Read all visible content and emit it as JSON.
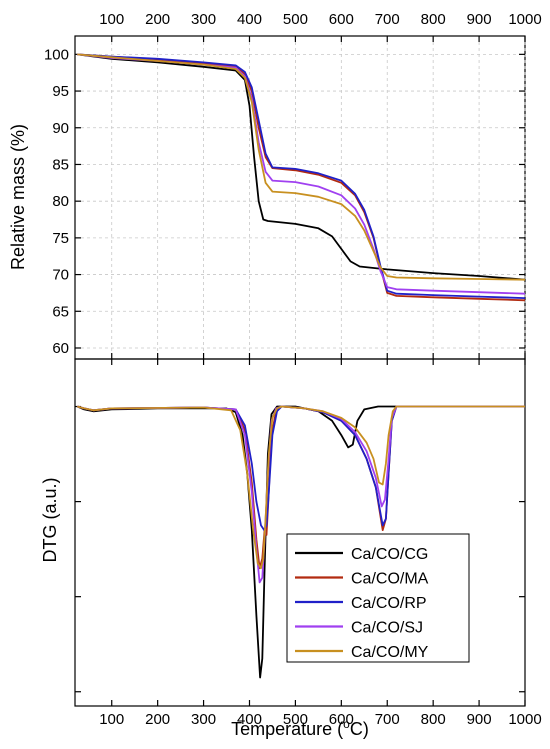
{
  "chart_data": [
    {
      "panel": "top",
      "type": "line",
      "ylabel": "Relative mass (%)",
      "xlabel": "",
      "xlim": [
        20,
        1000
      ],
      "ylim": [
        58.5,
        102.5
      ],
      "x_ticks": [
        "100",
        "200",
        "300",
        "400",
        "500",
        "600",
        "700",
        "800",
        "900",
        "1000"
      ],
      "y_ticks": [
        "60",
        "65",
        "70",
        "75",
        "80",
        "85",
        "90",
        "95",
        "100"
      ],
      "grid": true,
      "series": [
        {
          "name": "Ca/CO/CG",
          "color": "#000000",
          "points": [
            [
              25,
              100
            ],
            [
              100,
              99.4
            ],
            [
              200,
              98.9
            ],
            [
              300,
              98.3
            ],
            [
              370,
              97.8
            ],
            [
              390,
              96.5
            ],
            [
              400,
              93
            ],
            [
              410,
              86
            ],
            [
              420,
              80
            ],
            [
              430,
              77.5
            ],
            [
              440,
              77.3
            ],
            [
              500,
              76.9
            ],
            [
              550,
              76.3
            ],
            [
              580,
              75.2
            ],
            [
              600,
              73.5
            ],
            [
              620,
              71.8
            ],
            [
              640,
              71.1
            ],
            [
              700,
              70.7
            ],
            [
              800,
              70.2
            ],
            [
              900,
              69.8
            ],
            [
              1000,
              69.3
            ]
          ]
        },
        {
          "name": "Ca/CO/MA",
          "color": "#b22b10",
          "points": [
            [
              25,
              100
            ],
            [
              100,
              99.7
            ],
            [
              200,
              99.3
            ],
            [
              300,
              98.8
            ],
            [
              370,
              98.3
            ],
            [
              390,
              97.3
            ],
            [
              405,
              95
            ],
            [
              420,
              90
            ],
            [
              435,
              86
            ],
            [
              450,
              84.5
            ],
            [
              500,
              84.2
            ],
            [
              550,
              83.6
            ],
            [
              600,
              82.5
            ],
            [
              630,
              80.8
            ],
            [
              650,
              78.5
            ],
            [
              670,
              75
            ],
            [
              685,
              71
            ],
            [
              700,
              67.5
            ],
            [
              720,
              67.1
            ],
            [
              800,
              66.9
            ],
            [
              900,
              66.7
            ],
            [
              1000,
              66.5
            ]
          ]
        },
        {
          "name": "Ca/CO/RP",
          "color": "#2020c8",
          "points": [
            [
              25,
              100
            ],
            [
              100,
              99.7
            ],
            [
              200,
              99.4
            ],
            [
              300,
              98.9
            ],
            [
              370,
              98.5
            ],
            [
              390,
              97.6
            ],
            [
              405,
              95.5
            ],
            [
              420,
              91
            ],
            [
              435,
              86.5
            ],
            [
              450,
              84.6
            ],
            [
              500,
              84.4
            ],
            [
              550,
              83.8
            ],
            [
              600,
              82.8
            ],
            [
              630,
              81
            ],
            [
              650,
              78.8
            ],
            [
              670,
              75.2
            ],
            [
              685,
              71.2
            ],
            [
              700,
              67.8
            ],
            [
              720,
              67.4
            ],
            [
              800,
              67.2
            ],
            [
              900,
              67
            ],
            [
              1000,
              66.8
            ]
          ]
        },
        {
          "name": "Ca/CO/SJ",
          "color": "#a040f0",
          "points": [
            [
              25,
              100
            ],
            [
              100,
              99.5
            ],
            [
              200,
              99.1
            ],
            [
              300,
              98.6
            ],
            [
              370,
              98.2
            ],
            [
              390,
              97
            ],
            [
              405,
              94
            ],
            [
              420,
              88
            ],
            [
              435,
              84
            ],
            [
              450,
              82.8
            ],
            [
              500,
              82.6
            ],
            [
              550,
              82
            ],
            [
              600,
              80.8
            ],
            [
              630,
              79
            ],
            [
              650,
              76.8
            ],
            [
              670,
              73.5
            ],
            [
              685,
              70.5
            ],
            [
              700,
              68.3
            ],
            [
              720,
              68
            ],
            [
              800,
              67.8
            ],
            [
              900,
              67.6
            ],
            [
              1000,
              67.4
            ]
          ]
        },
        {
          "name": "Ca/CO/MY",
          "color": "#c89020",
          "points": [
            [
              25,
              100
            ],
            [
              100,
              99.6
            ],
            [
              200,
              99.1
            ],
            [
              300,
              98.6
            ],
            [
              370,
              98
            ],
            [
              390,
              96.8
            ],
            [
              405,
              93.5
            ],
            [
              420,
              87
            ],
            [
              435,
              82.5
            ],
            [
              450,
              81.3
            ],
            [
              500,
              81.1
            ],
            [
              550,
              80.6
            ],
            [
              600,
              79.6
            ],
            [
              630,
              78
            ],
            [
              650,
              76
            ],
            [
              670,
              73.2
            ],
            [
              685,
              71
            ],
            [
              700,
              69.8
            ],
            [
              720,
              69.6
            ],
            [
              800,
              69.5
            ],
            [
              900,
              69.4
            ],
            [
              1000,
              69.3
            ]
          ]
        }
      ]
    },
    {
      "panel": "bottom",
      "type": "line",
      "ylabel": "DTG (a.u.)",
      "xlabel": "Temperature (oC)",
      "xlim": [
        20,
        1000
      ],
      "ylim": [
        -0.315,
        0.05
      ],
      "x_ticks": [
        "100",
        "200",
        "300",
        "400",
        "500",
        "600",
        "700",
        "800",
        "900",
        "1000"
      ],
      "grid": false,
      "legend_position": "bottom-right",
      "series": [
        {
          "name": "Ca/CO/CG",
          "color": "#000000",
          "points": [
            [
              25,
              0
            ],
            [
              40,
              -0.003
            ],
            [
              60,
              -0.005
            ],
            [
              100,
              -0.003
            ],
            [
              200,
              -0.002
            ],
            [
              300,
              -0.002
            ],
            [
              350,
              -0.002
            ],
            [
              370,
              -0.006
            ],
            [
              385,
              -0.03
            ],
            [
              395,
              -0.07
            ],
            [
              405,
              -0.13
            ],
            [
              415,
              -0.22
            ],
            [
              423,
              -0.285
            ],
            [
              428,
              -0.265
            ],
            [
              433,
              -0.17
            ],
            [
              440,
              -0.05
            ],
            [
              448,
              -0.008
            ],
            [
              460,
              0
            ],
            [
              500,
              0
            ],
            [
              550,
              -0.005
            ],
            [
              580,
              -0.015
            ],
            [
              600,
              -0.03
            ],
            [
              615,
              -0.043
            ],
            [
              625,
              -0.04
            ],
            [
              635,
              -0.015
            ],
            [
              650,
              -0.003
            ],
            [
              680,
              0
            ],
            [
              1000,
              0
            ]
          ]
        },
        {
          "name": "Ca/CO/MA",
          "color": "#b22b10",
          "points": [
            [
              25,
              0
            ],
            [
              40,
              -0.002
            ],
            [
              60,
              -0.004
            ],
            [
              100,
              -0.002
            ],
            [
              300,
              -0.001
            ],
            [
              370,
              -0.003
            ],
            [
              390,
              -0.025
            ],
            [
              405,
              -0.08
            ],
            [
              415,
              -0.14
            ],
            [
              422,
              -0.17
            ],
            [
              428,
              -0.16
            ],
            [
              433,
              -0.13
            ],
            [
              437,
              -0.135
            ],
            [
              441,
              -0.1
            ],
            [
              448,
              -0.03
            ],
            [
              458,
              -0.005
            ],
            [
              470,
              0
            ],
            [
              520,
              -0.002
            ],
            [
              560,
              -0.006
            ],
            [
              600,
              -0.015
            ],
            [
              630,
              -0.03
            ],
            [
              655,
              -0.055
            ],
            [
              675,
              -0.085
            ],
            [
              690,
              -0.13
            ],
            [
              697,
              -0.118
            ],
            [
              703,
              -0.07
            ],
            [
              710,
              -0.015
            ],
            [
              720,
              0
            ],
            [
              1000,
              0
            ]
          ]
        },
        {
          "name": "Ca/CO/RP",
          "color": "#2020c8",
          "points": [
            [
              25,
              0
            ],
            [
              40,
              -0.002
            ],
            [
              60,
              -0.004
            ],
            [
              100,
              -0.002
            ],
            [
              300,
              -0.001
            ],
            [
              370,
              -0.003
            ],
            [
              390,
              -0.02
            ],
            [
              405,
              -0.06
            ],
            [
              415,
              -0.1
            ],
            [
              425,
              -0.125
            ],
            [
              432,
              -0.13
            ],
            [
              437,
              -0.125
            ],
            [
              442,
              -0.09
            ],
            [
              450,
              -0.03
            ],
            [
              460,
              -0.005
            ],
            [
              470,
              0
            ],
            [
              520,
              -0.002
            ],
            [
              560,
              -0.006
            ],
            [
              600,
              -0.015
            ],
            [
              630,
              -0.03
            ],
            [
              655,
              -0.055
            ],
            [
              675,
              -0.085
            ],
            [
              690,
              -0.125
            ],
            [
              697,
              -0.118
            ],
            [
              703,
              -0.07
            ],
            [
              710,
              -0.015
            ],
            [
              720,
              0
            ],
            [
              1000,
              0
            ]
          ]
        },
        {
          "name": "Ca/CO/SJ",
          "color": "#a040f0",
          "points": [
            [
              25,
              0
            ],
            [
              40,
              -0.002
            ],
            [
              60,
              -0.004
            ],
            [
              100,
              -0.002
            ],
            [
              300,
              -0.001
            ],
            [
              370,
              -0.003
            ],
            [
              390,
              -0.03
            ],
            [
              405,
              -0.09
            ],
            [
              415,
              -0.15
            ],
            [
              422,
              -0.185
            ],
            [
              428,
              -0.18
            ],
            [
              433,
              -0.14
            ],
            [
              440,
              -0.07
            ],
            [
              448,
              -0.015
            ],
            [
              458,
              -0.002
            ],
            [
              470,
              0
            ],
            [
              520,
              -0.002
            ],
            [
              560,
              -0.005
            ],
            [
              600,
              -0.013
            ],
            [
              630,
              -0.027
            ],
            [
              655,
              -0.047
            ],
            [
              675,
              -0.075
            ],
            [
              688,
              -0.105
            ],
            [
              695,
              -0.098
            ],
            [
              702,
              -0.06
            ],
            [
              710,
              -0.012
            ],
            [
              720,
              0
            ],
            [
              1000,
              0
            ]
          ]
        },
        {
          "name": "Ca/CO/MY",
          "color": "#c89020",
          "points": [
            [
              25,
              0
            ],
            [
              40,
              -0.002
            ],
            [
              60,
              -0.004
            ],
            [
              100,
              -0.002
            ],
            [
              300,
              -0.001
            ],
            [
              360,
              -0.004
            ],
            [
              380,
              -0.025
            ],
            [
              395,
              -0.07
            ],
            [
              408,
              -0.13
            ],
            [
              418,
              -0.165
            ],
            [
              425,
              -0.17
            ],
            [
              430,
              -0.16
            ],
            [
              436,
              -0.11
            ],
            [
              442,
              -0.05
            ],
            [
              450,
              -0.012
            ],
            [
              460,
              -0.002
            ],
            [
              470,
              0
            ],
            [
              520,
              -0.002
            ],
            [
              560,
              -0.005
            ],
            [
              600,
              -0.012
            ],
            [
              630,
              -0.022
            ],
            [
              655,
              -0.038
            ],
            [
              670,
              -0.055
            ],
            [
              682,
              -0.08
            ],
            [
              690,
              -0.082
            ],
            [
              697,
              -0.06
            ],
            [
              703,
              -0.03
            ],
            [
              712,
              -0.005
            ],
            [
              720,
              0
            ],
            [
              1000,
              0
            ]
          ]
        }
      ]
    }
  ]
}
